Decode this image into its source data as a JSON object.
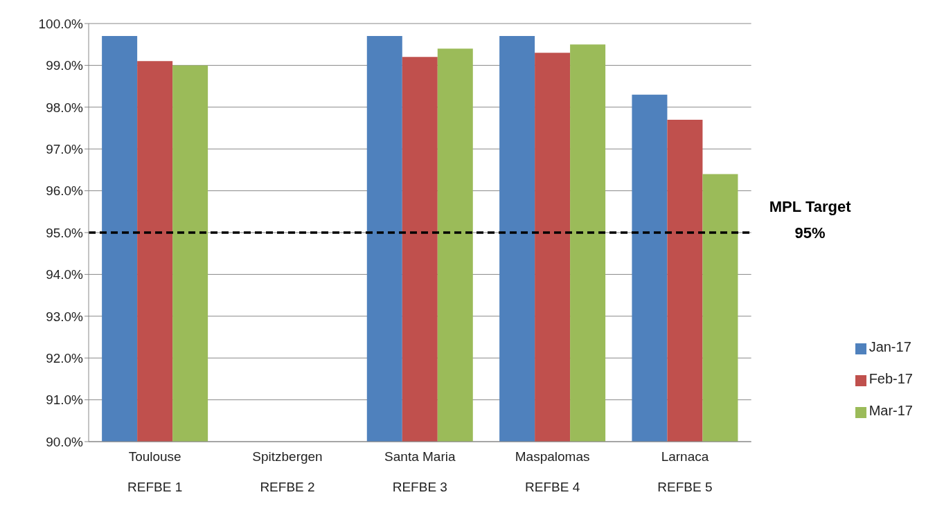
{
  "chart_data": {
    "type": "bar",
    "categories": [
      "Toulouse\nREFBE 1",
      "Spitzbergen\nREFBE 2",
      "Santa Maria\nREFBE 3",
      "Maspalomas\nREFBE 4",
      "Larnaca\nREFBE 5"
    ],
    "series": [
      {
        "name": "Jan-17",
        "color": "#4f81bd",
        "values": [
          99.7,
          null,
          99.7,
          99.7,
          98.3
        ]
      },
      {
        "name": "Feb-17",
        "color": "#c0504d",
        "values": [
          99.1,
          null,
          99.2,
          99.3,
          97.7
        ]
      },
      {
        "name": "Mar-17",
        "color": "#9bbb59",
        "values": [
          99.0,
          null,
          99.4,
          99.5,
          96.4
        ]
      }
    ],
    "ylim": [
      90,
      100
    ],
    "yticks": [
      {
        "value": 90,
        "label": "90.0%"
      },
      {
        "value": 91,
        "label": "91.0%"
      },
      {
        "value": 92,
        "label": "92.0%"
      },
      {
        "value": 93,
        "label": "93.0%"
      },
      {
        "value": 94,
        "label": "94.0%"
      },
      {
        "value": 95,
        "label": "95.0%"
      },
      {
        "value": 96,
        "label": "96.0%"
      },
      {
        "value": 97,
        "label": "97.0%"
      },
      {
        "value": 98,
        "label": "98.0%"
      },
      {
        "value": 99,
        "label": "99.0%"
      },
      {
        "value": 100,
        "label": "100.0%"
      }
    ],
    "ref_lines": [
      {
        "axis": "y",
        "value": 95,
        "label": "MPL Target\n95%",
        "color": "#000000",
        "line_style": "dashed"
      }
    ],
    "grid": "y",
    "legend": "right"
  }
}
